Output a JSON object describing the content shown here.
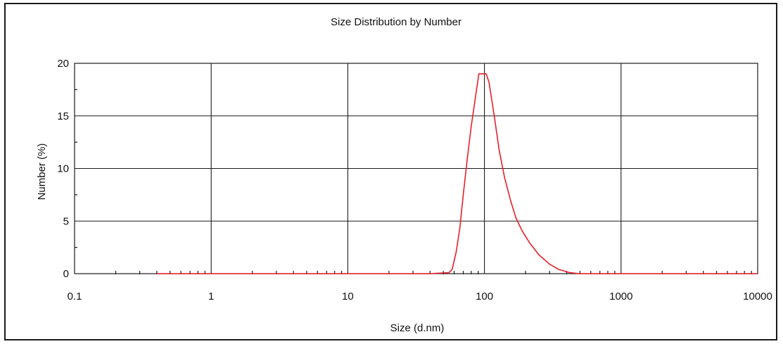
{
  "chart_data": {
    "type": "line",
    "title": "Size Distribution by Number",
    "xlabel": "Size (d.nm)",
    "ylabel": "Number (%)",
    "x_scale": "log",
    "xlim": [
      0.1,
      10000
    ],
    "ylim": [
      0,
      20
    ],
    "x_ticks": [
      "0.1",
      "1",
      "10",
      "100",
      "1000",
      "10000"
    ],
    "y_ticks": [
      "0",
      "5",
      "10",
      "15",
      "20"
    ],
    "grid": true,
    "legend": "none",
    "series": [
      {
        "color": "#e8202a",
        "points": [
          [
            0.4,
            0
          ],
          [
            10,
            0
          ],
          [
            40,
            0
          ],
          [
            55,
            0.1
          ],
          [
            58,
            0.4
          ],
          [
            62,
            2.0
          ],
          [
            66,
            4.3
          ],
          [
            70,
            7.5
          ],
          [
            75,
            11.0
          ],
          [
            80,
            14.0
          ],
          [
            86,
            16.8
          ],
          [
            91,
            19.0
          ],
          [
            103,
            19.0
          ],
          [
            108,
            18.2
          ],
          [
            118,
            15.0
          ],
          [
            128,
            11.8
          ],
          [
            140,
            9.2
          ],
          [
            155,
            7.0
          ],
          [
            170,
            5.3
          ],
          [
            190,
            4.0
          ],
          [
            215,
            2.9
          ],
          [
            250,
            1.8
          ],
          [
            300,
            0.9
          ],
          [
            350,
            0.4
          ],
          [
            420,
            0.1
          ],
          [
            500,
            0
          ],
          [
            1000,
            0
          ],
          [
            10000,
            0
          ]
        ]
      }
    ]
  }
}
